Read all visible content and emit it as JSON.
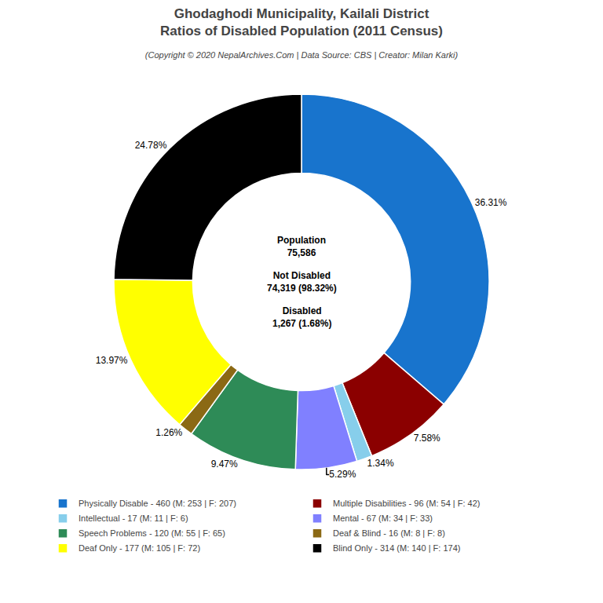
{
  "chart_data": {
    "type": "pie",
    "title": "Ghodaghodi Municipality, Kailali District\nRatios of Disabled Population (2011 Census)",
    "subtitle": "(Copyright © 2020 NepalArchives.Com | Data Source: CBS | Creator: Milan Karki)",
    "categories": [
      "Physically Disable - 460 (M: 253 | F: 207)",
      "Multiple Disabilities - 96 (M: 54 | F: 42)",
      "Intellectual - 17 (M: 11 | F: 6)",
      "Mental - 67 (M: 34 | F: 33)",
      "Speech Problems - 120 (M: 55 | F: 65)",
      "Deaf & Blind - 16 (M: 8 | F: 8)",
      "Deaf Only - 177 (M: 105 | F: 72)",
      "Blind Only - 314 (M: 140 | F: 174)"
    ],
    "values": [
      36.31,
      7.58,
      1.34,
      5.29,
      9.47,
      1.26,
      13.97,
      24.78
    ],
    "value_labels": [
      "36.31%",
      "7.58%",
      "1.34%",
      "5.29%",
      "9.47%",
      "1.26%",
      "13.97%",
      "24.78%"
    ],
    "colors": [
      "#1874CD",
      "#8B0000",
      "#87CEEB",
      "#8080FF",
      "#2E8B57",
      "#8B6914",
      "#FFFF00",
      "#000000"
    ],
    "data_labels": true,
    "legend": "bottom",
    "annotations": [
      "Population\n75,586",
      "Not Disabled\n74,319 (98.32%)",
      "Disabled\n1,267 (1.68%)"
    ]
  }
}
